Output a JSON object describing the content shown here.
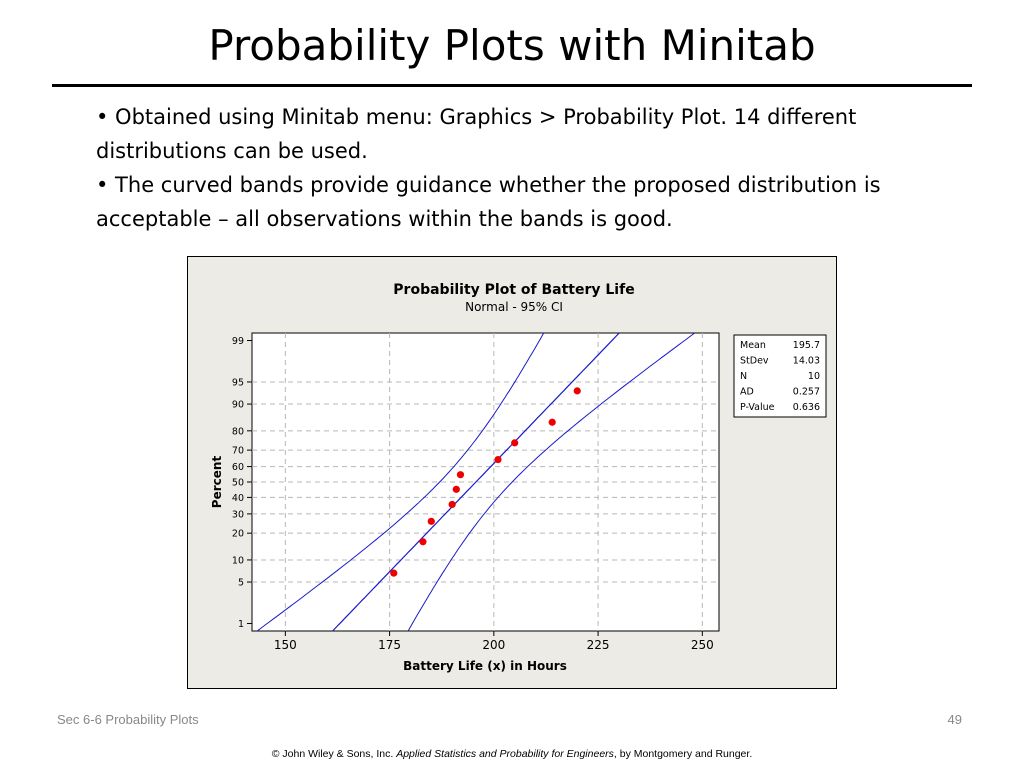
{
  "slide": {
    "title": "Probability Plots with Minitab",
    "bullets": [
      "•  Obtained using Minitab menu:  Graphics > Probability Plot.  14 different distributions can be used.",
      "•  The curved bands provide guidance whether the proposed distribution is acceptable – all observations within the bands is good."
    ],
    "footer_left": "Sec 6-6 Probability Plots",
    "page_number": "49",
    "copyright_prefix": "© John Wiley & Sons, Inc.  ",
    "copyright_title": "Applied Statistics and Probability for Engineers",
    "copyright_suffix": ", by Montgomery and Runger."
  },
  "chart_data": {
    "type": "scatter",
    "title": "Probability Plot of Battery Life",
    "subtitle": "Normal - 95% CI",
    "xlabel": "Battery Life (x) in Hours",
    "ylabel": "Percent",
    "xlim": [
      142,
      254
    ],
    "x_ticks": [
      150,
      175,
      200,
      225,
      250
    ],
    "y_ticks": [
      1,
      5,
      10,
      20,
      30,
      40,
      50,
      60,
      70,
      80,
      90,
      95,
      99
    ],
    "y_scale": "normal-probability",
    "grid": true,
    "points": {
      "x": [
        176,
        183,
        185,
        190,
        191,
        192,
        201,
        205,
        214,
        220
      ],
      "y": [
        6.7,
        16.3,
        25.9,
        35.6,
        45.2,
        54.8,
        64.4,
        74.0,
        83.7,
        93.3
      ],
      "color": "#ee0000"
    },
    "fit_line": {
      "mean": 195.7,
      "stdev": 14.03,
      "color": "#1a1acc"
    },
    "ci_band": {
      "level": 0.95,
      "n": 10,
      "color": "#1a1acc"
    },
    "stats": [
      {
        "label": "Mean",
        "value": "195.7"
      },
      {
        "label": "StDev",
        "value": "14.03"
      },
      {
        "label": "N",
        "value": "10"
      },
      {
        "label": "AD",
        "value": "0.257"
      },
      {
        "label": "P-Value",
        "value": "0.636"
      }
    ]
  }
}
